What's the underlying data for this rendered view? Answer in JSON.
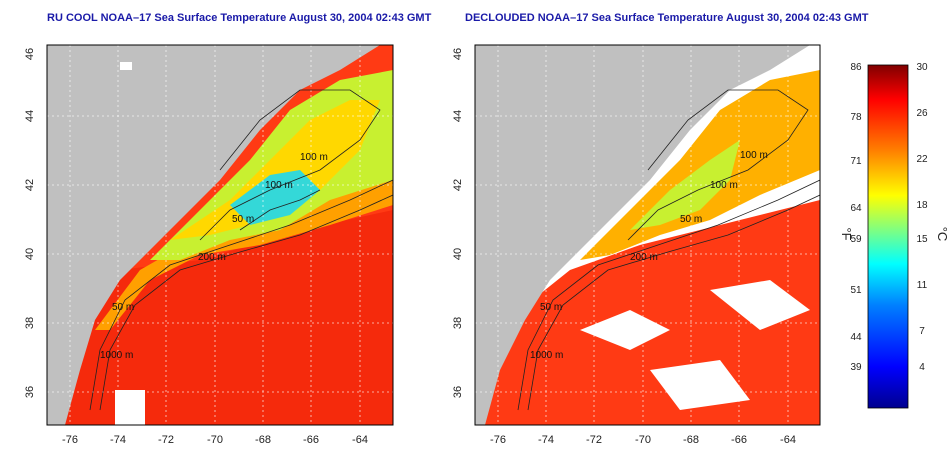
{
  "panels": [
    {
      "id": "left",
      "title": "RU COOL NOAA–17 Sea Surface Temperature August 30, 2004 02:43 GMT",
      "lat_ticks": [
        "46",
        "44",
        "42",
        "40",
        "38",
        "36"
      ],
      "lon_ticks": [
        "-76",
        "-74",
        "-72",
        "-70",
        "-68",
        "-66",
        "-64"
      ],
      "contour_labels": [
        "100 m",
        "100 m",
        "50 m",
        "200 m",
        "50 m",
        "1000 m"
      ],
      "clouds_removed": false
    },
    {
      "id": "right",
      "title": "DECLOUDED NOAA–17 Sea Surface Temperature August 30, 2004 02:43 GMT",
      "lat_ticks": [
        "46",
        "44",
        "42",
        "40",
        "38",
        "36"
      ],
      "lon_ticks": [
        "-76",
        "-74",
        "-72",
        "-70",
        "-68",
        "-66",
        "-64"
      ],
      "contour_labels": [
        "100 m",
        "100 m",
        "50 m",
        "200 m",
        "50 m",
        "1000 m"
      ],
      "clouds_removed": true
    }
  ],
  "colorbar": {
    "fahrenheit_ticks": [
      "86",
      "78",
      "71",
      "64",
      "59",
      "51",
      "44",
      "39"
    ],
    "celsius_ticks": [
      "30",
      "26",
      "22",
      "18",
      "15",
      "11",
      "7",
      "4"
    ],
    "fahrenheit_unit": "°F",
    "celsius_unit": "°C",
    "colors": [
      "#00008f",
      "#0000ff",
      "#0080ff",
      "#00ffff",
      "#80ff80",
      "#ffff00",
      "#ff8000",
      "#ff0000",
      "#800000"
    ]
  },
  "colors": {
    "land": "#c0c0c0",
    "cloud": "#ffffff",
    "warm": "#ff3a14",
    "mid": "#ffa000",
    "cool": "#9aee3c",
    "cold": "#34d8d8",
    "title": "#1a1aa8"
  }
}
